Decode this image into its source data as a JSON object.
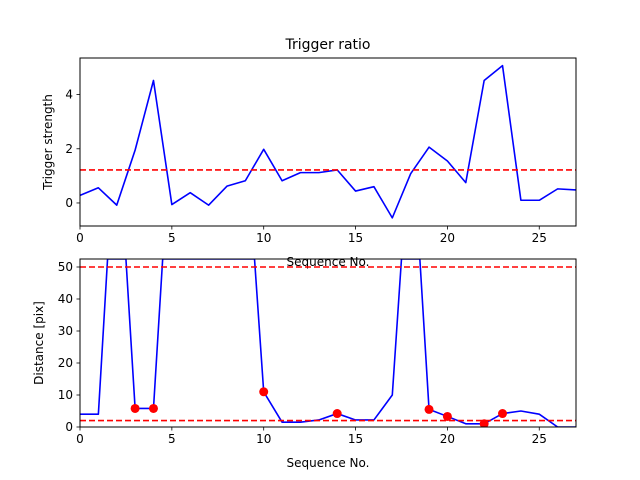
{
  "colors": {
    "line": "#0000ff",
    "threshold": "#ff0000",
    "marker": "#ff0000",
    "axes": "#000000"
  },
  "chart_data": [
    {
      "type": "line",
      "title": "Trigger ratio",
      "xlabel": "Sequence No.",
      "ylabel": "Trigger strength",
      "xlim": [
        0,
        27
      ],
      "ylim": [
        -0.85,
        5.35
      ],
      "xticks": [
        0,
        5,
        10,
        15,
        20,
        25
      ],
      "yticks": [
        0,
        2,
        4
      ],
      "grid": false,
      "legend": null,
      "series": [
        {
          "x": [
            0,
            1,
            2,
            3,
            4,
            5,
            6,
            7,
            8,
            9,
            10,
            11,
            12,
            13,
            14,
            15,
            16,
            17,
            18,
            19,
            20,
            21,
            22,
            23,
            24,
            25,
            26,
            27
          ],
          "values": [
            0.28,
            0.56,
            -0.08,
            1.95,
            4.52,
            -0.06,
            0.38,
            -0.08,
            0.62,
            0.82,
            1.98,
            0.82,
            1.12,
            1.12,
            1.22,
            0.44,
            0.6,
            -0.55,
            1.08,
            2.06,
            1.55,
            0.75,
            4.52,
            5.07,
            0.1,
            0.1,
            0.52,
            0.48
          ]
        }
      ],
      "hlines": [
        {
          "y": 1.22,
          "style": "dashed"
        }
      ]
    },
    {
      "type": "line",
      "title": "",
      "xlabel": "Sequence No.",
      "ylabel": "Distance [pix]",
      "xlim": [
        0,
        27
      ],
      "ylim": [
        0,
        52.5
      ],
      "xticks": [
        0,
        5,
        10,
        15,
        20,
        25
      ],
      "yticks": [
        0,
        10,
        20,
        30,
        40,
        50
      ],
      "grid": false,
      "legend": null,
      "series": [
        {
          "x": [
            0,
            1,
            1.5,
            2.5,
            3,
            4,
            4.5,
            9.5,
            10,
            11,
            12,
            13,
            14,
            15,
            16,
            17,
            17.5,
            18.5,
            19,
            20,
            21,
            22,
            23,
            24,
            25,
            26,
            27
          ],
          "values": [
            4,
            4,
            52.5,
            52.5,
            5.8,
            5.8,
            52.5,
            52.5,
            11,
            1.5,
            1.5,
            2.2,
            4.2,
            2.2,
            2.2,
            10,
            52.5,
            52.5,
            5.5,
            3.3,
            1,
            1,
            4.2,
            5,
            4,
            0,
            0
          ]
        },
        {
          "marker": "circle",
          "x": [
            3,
            4,
            10,
            14,
            19,
            20,
            22,
            23
          ],
          "values": [
            5.8,
            5.8,
            11,
            4.2,
            5.5,
            3.3,
            1,
            4.2
          ]
        }
      ],
      "hlines": [
        {
          "y": 50,
          "style": "dashed"
        },
        {
          "y": 2,
          "style": "dashed"
        }
      ]
    }
  ]
}
